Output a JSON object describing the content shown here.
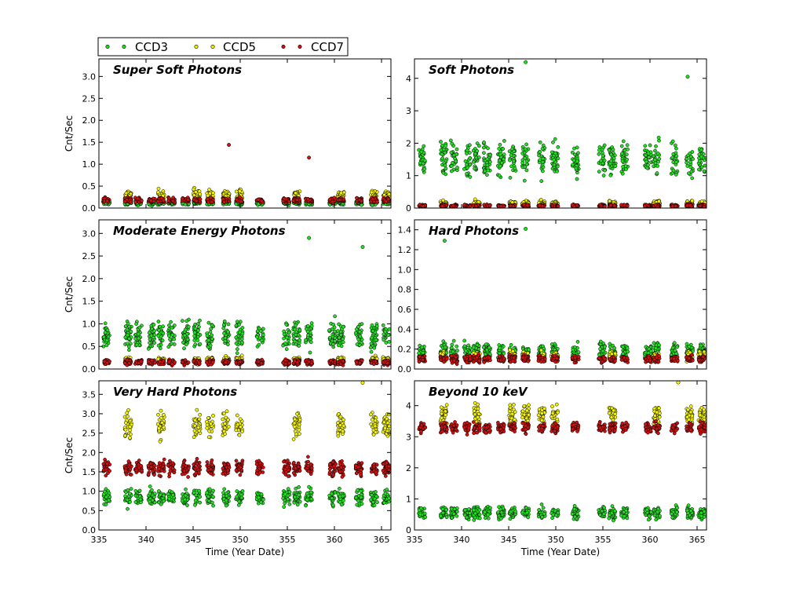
{
  "legend": {
    "items": [
      {
        "name": "CCD3",
        "color": "#22dd22"
      },
      {
        "name": "CCD5",
        "color": "#f2f200"
      },
      {
        "name": "CCD7",
        "color": "#cc1111"
      }
    ]
  },
  "chart_data": [
    {
      "type": "scatter",
      "title": "Super Soft Photons",
      "xlabel": "",
      "ylabel": "Cnt/Sec",
      "xlim": [
        335,
        366
      ],
      "ylim": [
        0,
        3.4
      ],
      "yticks": [
        "0.0",
        "0.5",
        "1.0",
        "1.5",
        "2.0",
        "2.5",
        "3.0"
      ],
      "ytick_values": [
        0,
        0.5,
        1.0,
        1.5,
        2.0,
        2.5,
        3.0
      ],
      "xticks": [],
      "series": [
        {
          "name": "CCD3",
          "level": 0.12,
          "spread": 0.08
        },
        {
          "name": "CCD5",
          "level": 0.3,
          "spread": 0.2
        },
        {
          "name": "CCD7",
          "level": 0.18,
          "spread": 0.1
        }
      ],
      "outliers": [
        {
          "x": 348.8,
          "y": 1.44,
          "series": "CCD7"
        },
        {
          "x": 357.3,
          "y": 1.15,
          "series": "CCD7"
        }
      ]
    },
    {
      "type": "scatter",
      "title": "Soft Photons",
      "xlabel": "",
      "ylabel": "",
      "xlim": [
        335,
        366
      ],
      "ylim": [
        0,
        4.6
      ],
      "yticks": [
        "0",
        "1",
        "2",
        "3",
        "4"
      ],
      "ytick_values": [
        0,
        1,
        2,
        3,
        4
      ],
      "xticks": [],
      "series": [
        {
          "name": "CCD3",
          "level": 1.5,
          "spread": 0.9
        },
        {
          "name": "CCD5",
          "level": 0.15,
          "spread": 0.15
        },
        {
          "name": "CCD7",
          "level": 0.07,
          "spread": 0.07
        }
      ],
      "outliers": [
        {
          "x": 346.8,
          "y": 4.5,
          "series": "CCD3"
        },
        {
          "x": 364.0,
          "y": 4.05,
          "series": "CCD3"
        }
      ]
    },
    {
      "type": "scatter",
      "title": "Moderate Energy Photons",
      "xlabel": "",
      "ylabel": "Cnt/Sec",
      "xlim": [
        335,
        366
      ],
      "ylim": [
        0,
        3.3
      ],
      "yticks": [
        "0.0",
        "0.5",
        "1.0",
        "1.5",
        "2.0",
        "2.5",
        "3.0"
      ],
      "ytick_values": [
        0,
        0.5,
        1.0,
        1.5,
        2.0,
        2.5,
        3.0
      ],
      "xticks": [],
      "series": [
        {
          "name": "CCD3",
          "level": 0.75,
          "spread": 0.55
        },
        {
          "name": "CCD5",
          "level": 0.2,
          "spread": 0.12
        },
        {
          "name": "CCD7",
          "level": 0.15,
          "spread": 0.1
        }
      ],
      "outliers": [
        {
          "x": 357.3,
          "y": 2.9,
          "series": "CCD3"
        },
        {
          "x": 363.0,
          "y": 2.7,
          "series": "CCD3"
        }
      ]
    },
    {
      "type": "scatter",
      "title": "Hard Photons",
      "xlabel": "",
      "ylabel": "",
      "xlim": [
        335,
        366
      ],
      "ylim": [
        0,
        1.5
      ],
      "yticks": [
        "0.0",
        "0.2",
        "0.4",
        "0.6",
        "0.8",
        "1.0",
        "1.2",
        "1.4"
      ],
      "ytick_values": [
        0,
        0.2,
        0.4,
        0.6,
        0.8,
        1.0,
        1.2,
        1.4
      ],
      "xticks": [],
      "series": [
        {
          "name": "CCD3",
          "level": 0.18,
          "spread": 0.15
        },
        {
          "name": "CCD5",
          "level": 0.13,
          "spread": 0.08
        },
        {
          "name": "CCD7",
          "level": 0.1,
          "spread": 0.06
        }
      ],
      "outliers": [
        {
          "x": 346.8,
          "y": 1.41,
          "series": "CCD3"
        },
        {
          "x": 338.2,
          "y": 1.29,
          "series": "CCD3"
        }
      ]
    },
    {
      "type": "scatter",
      "title": "Very Hard Photons",
      "xlabel": "Time (Year Date)",
      "ylabel": "Cnt/Sec",
      "xlim": [
        335,
        366
      ],
      "ylim": [
        0,
        3.85
      ],
      "yticks": [
        "0.0",
        "0.5",
        "1.0",
        "1.5",
        "2.0",
        "2.5",
        "3.0",
        "3.5"
      ],
      "ytick_values": [
        0,
        0.5,
        1.0,
        1.5,
        2.0,
        2.5,
        3.0,
        3.5
      ],
      "xticks": [
        "335",
        "340",
        "345",
        "350",
        "355",
        "360",
        "365"
      ],
      "xtick_values": [
        335,
        340,
        345,
        350,
        355,
        360,
        365
      ],
      "series": [
        {
          "name": "CCD3",
          "level": 0.85,
          "spread": 0.35
        },
        {
          "name": "CCD5",
          "level": 2.7,
          "spread": 0.6
        },
        {
          "name": "CCD7",
          "level": 1.6,
          "spread": 0.35
        }
      ],
      "outliers": [
        {
          "x": 363.0,
          "y": 3.8,
          "series": "CCD5"
        }
      ]
    },
    {
      "type": "scatter",
      "title": "Beyond 10 keV",
      "xlabel": "Time (Year Date)",
      "ylabel": "",
      "xlim": [
        335,
        366
      ],
      "ylim": [
        0,
        4.8
      ],
      "yticks": [
        "0",
        "1",
        "2",
        "3",
        "4"
      ],
      "ytick_values": [
        0,
        1,
        2,
        3,
        4
      ],
      "xticks": [
        "335",
        "340",
        "345",
        "350",
        "355",
        "360",
        "365"
      ],
      "xtick_values": [
        335,
        340,
        345,
        350,
        355,
        360,
        365
      ],
      "series": [
        {
          "name": "CCD3",
          "level": 0.55,
          "spread": 0.35
        },
        {
          "name": "CCD5",
          "level": 3.7,
          "spread": 0.6
        },
        {
          "name": "CCD7",
          "level": 3.3,
          "spread": 0.3
        }
      ],
      "outliers": [
        {
          "x": 363.0,
          "y": 4.75,
          "series": "CCD5"
        }
      ]
    }
  ],
  "observation_blocks": [
    335.8,
    338.1,
    339.2,
    340.6,
    341.6,
    342.7,
    344.2,
    345.4,
    346.8,
    348.5,
    349.9,
    352.1,
    354.9,
    356.0,
    357.3,
    359.8,
    360.7,
    362.6,
    364.2,
    365.5
  ]
}
